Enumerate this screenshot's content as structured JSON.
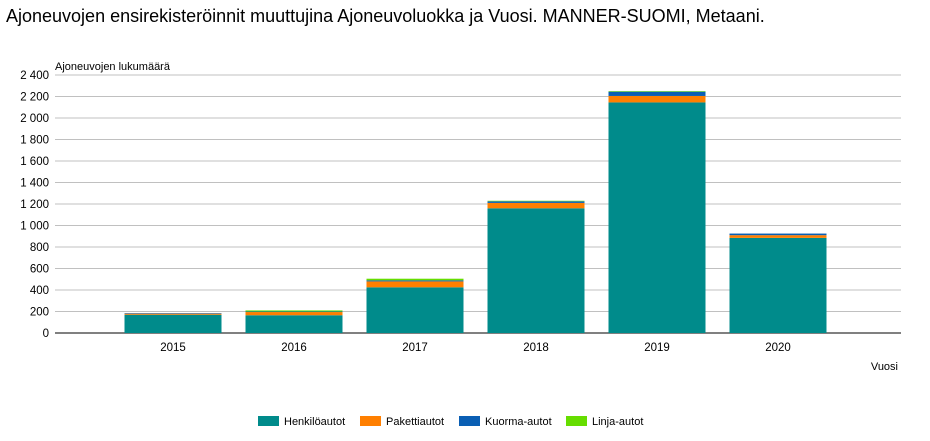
{
  "chart_data": {
    "type": "bar",
    "stacked": true,
    "title": "Ajoneuvojen ensirekisteröinnit muuttujina Ajoneuvoluokka ja Vuosi. MANNER-SUOMI, Metaani.",
    "ylabel": "Ajoneuvojen lukumäärä",
    "xlabel": "Vuosi",
    "ylim": [
      0,
      2400
    ],
    "yticks": [
      0,
      200,
      400,
      600,
      800,
      1000,
      1200,
      1400,
      1600,
      1800,
      2000,
      2200,
      2400
    ],
    "ytick_labels": [
      "0",
      "200",
      "400",
      "600",
      "800",
      "1 000",
      "1 200",
      "1 400",
      "1 600",
      "1 800",
      "2 000",
      "2 200",
      "2 400"
    ],
    "categories": [
      "2015",
      "2016",
      "2017",
      "2018",
      "2019",
      "2020"
    ],
    "grid": true,
    "legend_position": "bottom",
    "series": [
      {
        "name": "Henkilöautot",
        "color": "#008b8b",
        "values": [
          170,
          165,
          425,
          1160,
          2145,
          885
        ]
      },
      {
        "name": "Pakettiautot",
        "color": "#ff7f00",
        "values": [
          10,
          30,
          55,
          50,
          60,
          25
        ]
      },
      {
        "name": "Kuorma-autot",
        "color": "#0a5fb4",
        "values": [
          5,
          5,
          10,
          15,
          40,
          15
        ]
      },
      {
        "name": "Linja-autot",
        "color": "#66dd00",
        "values": [
          0,
          10,
          15,
          5,
          5,
          0
        ]
      }
    ]
  }
}
